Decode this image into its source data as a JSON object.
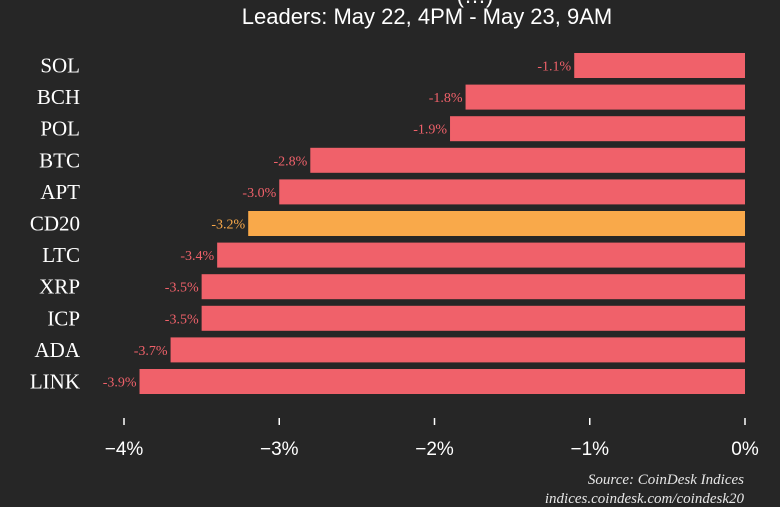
{
  "chart_data": {
    "type": "bar",
    "orientation": "horizontal",
    "title_partial": "(…)",
    "subtitle": "Leaders: May 22, 4PM - May 23, 9AM",
    "categories": [
      "SOL",
      "BCH",
      "POL",
      "BTC",
      "APT",
      "CD20",
      "LTC",
      "XRP",
      "ICP",
      "ADA",
      "LINK"
    ],
    "values": [
      -1.1,
      -1.8,
      -1.9,
      -2.8,
      -3.0,
      -3.2,
      -3.4,
      -3.5,
      -3.5,
      -3.7,
      -3.9
    ],
    "value_labels": [
      "-1.1%",
      "-1.8%",
      "-1.9%",
      "-2.8%",
      "-3.0%",
      "-3.2%",
      "-3.4%",
      "-3.5%",
      "-3.5%",
      "-3.7%",
      "-3.9%"
    ],
    "highlight_category": "CD20",
    "xlim": [
      -4.15,
      0
    ],
    "xticks": [
      -4,
      -3,
      -2,
      -1,
      0
    ],
    "xtick_labels": [
      "−4%",
      "−3%",
      "−2%",
      "−1%",
      "0%"
    ],
    "colors": {
      "background": "#262626",
      "bar": "#f0616a",
      "highlight_bar": "#f9a94a",
      "label": "#f0616a",
      "highlight_label": "#f9a94a"
    },
    "source_line1": "Source: CoinDesk Indices",
    "source_line2": "indices.coindesk.com/coindesk20"
  }
}
